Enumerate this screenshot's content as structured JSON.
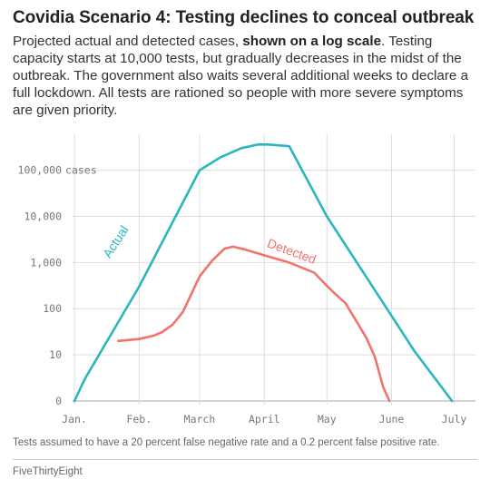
{
  "title": "Covidia Scenario 4: Testing declines to conceal outbreak",
  "subtitle_pre": "Projected actual and detected cases, ",
  "subtitle_bold": "shown on a log scale",
  "subtitle_post": ". Testing capacity starts at 10,000 tests, but gradually decreases in the midst of the outbreak. The government also waits several additional weeks to declare a full lockdown. All tests are rationed so people with more severe symptoms are given priority.",
  "footnote": "Tests assumed to have a 20 percent false negative rate and a 0.2 percent false positive rate.",
  "source": "FiveThirtyEight",
  "colors": {
    "actual": "#2bb6bf",
    "detected": "#f0746b",
    "grid": "#dddddd",
    "zero_line": "#aaaaaa"
  },
  "chart_data": {
    "type": "line",
    "yscale": "log",
    "ylim": [
      1,
      600000
    ],
    "y_ticks": [
      {
        "value": 1,
        "label": "0"
      },
      {
        "value": 10,
        "label": "10"
      },
      {
        "value": 100,
        "label": "100"
      },
      {
        "value": 1000,
        "label": "1,000"
      },
      {
        "value": 10000,
        "label": "10,000"
      },
      {
        "value": 100000,
        "label": "100,000 cases"
      }
    ],
    "x_ticks": [
      "Jan.",
      "Feb.",
      "March",
      "April",
      "May",
      "June",
      "July"
    ],
    "x_tick_days": [
      0,
      31,
      60,
      91,
      121,
      152,
      182
    ],
    "xlim": [
      0,
      187
    ],
    "series": [
      {
        "name": "Actual",
        "points": [
          [
            0,
            1
          ],
          [
            5,
            3
          ],
          [
            31,
            300
          ],
          [
            60,
            100000
          ],
          [
            70,
            190000
          ],
          [
            80,
            300000
          ],
          [
            88,
            360000
          ],
          [
            93,
            360000
          ],
          [
            103,
            330000
          ],
          [
            121,
            10000
          ],
          [
            152,
            70
          ],
          [
            163,
            12
          ],
          [
            176,
            2
          ],
          [
            181,
            1
          ]
        ]
      },
      {
        "name": "Detected",
        "points": [
          [
            21,
            20
          ],
          [
            31,
            22
          ],
          [
            38,
            26
          ],
          [
            42,
            31
          ],
          [
            47,
            45
          ],
          [
            52,
            85
          ],
          [
            60,
            500
          ],
          [
            66,
            1100
          ],
          [
            72,
            2000
          ],
          [
            76,
            2200
          ],
          [
            82,
            1900
          ],
          [
            93,
            1350
          ],
          [
            103,
            1000
          ],
          [
            115,
            600
          ],
          [
            120,
            350
          ],
          [
            124,
            230
          ],
          [
            130,
            130
          ],
          [
            135,
            55
          ],
          [
            140,
            23
          ],
          [
            144,
            9
          ],
          [
            148,
            2
          ],
          [
            151,
            1
          ]
        ]
      }
    ]
  }
}
